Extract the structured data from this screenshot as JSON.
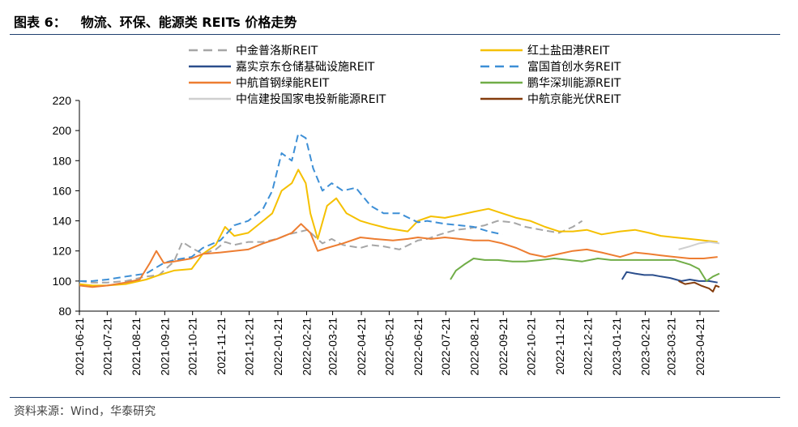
{
  "header": {
    "number": "图表 6：",
    "title": "物流、环保、能源类 REITs 价格走势"
  },
  "source": "资料来源：Wind，华泰研究",
  "chart_data": {
    "type": "line",
    "title": "物流、环保、能源类 REITs 价格走势",
    "xlabel": "",
    "ylabel": "",
    "ylim": [
      80,
      220
    ],
    "yticks": [
      80,
      100,
      120,
      140,
      160,
      180,
      200,
      220
    ],
    "xlim": [
      "2021-06-21",
      "2023-05-12"
    ],
    "xticks": [
      "2021-06-21",
      "2021-07-21",
      "2021-08-21",
      "2021-09-21",
      "2021-10-21",
      "2021-11-21",
      "2021-12-21",
      "2022-01-21",
      "2022-02-21",
      "2022-03-21",
      "2022-04-21",
      "2022-05-21",
      "2022-06-21",
      "2022-07-21",
      "2022-08-21",
      "2022-09-21",
      "2022-10-21",
      "2022-11-21",
      "2022-12-21",
      "2023-01-21",
      "2023-02-21",
      "2023-03-21",
      "2023-04-21"
    ],
    "grid": false,
    "legend_position": "top",
    "series": [
      {
        "name": "中金普洛斯REIT",
        "color": "#a6a6a6",
        "dash": "dashed",
        "points": [
          [
            "2021-06-21",
            100
          ],
          [
            "2021-07-05",
            99
          ],
          [
            "2021-07-21",
            99
          ],
          [
            "2021-08-10",
            100
          ],
          [
            "2021-09-01",
            103
          ],
          [
            "2021-09-15",
            104
          ],
          [
            "2021-10-01",
            113
          ],
          [
            "2021-10-10",
            126
          ],
          [
            "2021-10-20",
            122
          ],
          [
            "2021-11-01",
            118
          ],
          [
            "2021-11-15",
            121
          ],
          [
            "2021-11-25",
            126
          ],
          [
            "2021-12-05",
            124
          ],
          [
            "2021-12-20",
            126
          ],
          [
            "2022-01-05",
            126
          ],
          [
            "2022-01-20",
            128
          ],
          [
            "2022-02-01",
            131
          ],
          [
            "2022-02-15",
            133
          ],
          [
            "2022-02-22",
            134
          ],
          [
            "2022-03-01",
            130
          ],
          [
            "2022-03-10",
            125
          ],
          [
            "2022-03-20",
            128
          ],
          [
            "2022-04-01",
            124
          ],
          [
            "2022-04-20",
            122
          ],
          [
            "2022-05-01",
            124
          ],
          [
            "2022-05-15",
            123
          ],
          [
            "2022-06-01",
            121
          ],
          [
            "2022-06-21",
            127
          ],
          [
            "2022-07-01",
            128
          ],
          [
            "2022-07-15",
            131
          ],
          [
            "2022-08-01",
            134
          ],
          [
            "2022-08-15",
            135
          ],
          [
            "2022-09-01",
            137
          ],
          [
            "2022-09-15",
            140
          ],
          [
            "2022-10-01",
            139
          ],
          [
            "2022-10-15",
            136
          ],
          [
            "2022-11-01",
            134
          ],
          [
            "2022-11-20",
            132
          ],
          [
            "2022-12-05",
            136
          ],
          [
            "2022-12-15",
            140
          ]
        ]
      },
      {
        "name": "红土盐田港REIT",
        "color": "#f5c000",
        "dash": "solid",
        "points": [
          [
            "2021-06-21",
            98
          ],
          [
            "2021-07-05",
            97
          ],
          [
            "2021-07-21",
            97
          ],
          [
            "2021-08-10",
            98
          ],
          [
            "2021-09-01",
            101
          ],
          [
            "2021-09-15",
            104
          ],
          [
            "2021-10-01",
            107
          ],
          [
            "2021-10-20",
            108
          ],
          [
            "2021-11-01",
            118
          ],
          [
            "2021-11-15",
            124
          ],
          [
            "2021-11-25",
            136
          ],
          [
            "2021-12-05",
            130
          ],
          [
            "2021-12-20",
            132
          ],
          [
            "2022-01-05",
            140
          ],
          [
            "2022-01-15",
            145
          ],
          [
            "2022-01-25",
            160
          ],
          [
            "2022-02-05",
            165
          ],
          [
            "2022-02-12",
            174
          ],
          [
            "2022-02-20",
            165
          ],
          [
            "2022-02-25",
            145
          ],
          [
            "2022-03-05",
            128
          ],
          [
            "2022-03-15",
            150
          ],
          [
            "2022-03-25",
            155
          ],
          [
            "2022-04-05",
            145
          ],
          [
            "2022-04-20",
            140
          ],
          [
            "2022-05-01",
            138
          ],
          [
            "2022-05-20",
            135
          ],
          [
            "2022-06-10",
            133
          ],
          [
            "2022-06-21",
            140
          ],
          [
            "2022-07-05",
            143
          ],
          [
            "2022-07-20",
            142
          ],
          [
            "2022-08-05",
            144
          ],
          [
            "2022-08-20",
            146
          ],
          [
            "2022-09-05",
            148
          ],
          [
            "2022-09-20",
            145
          ],
          [
            "2022-10-05",
            142
          ],
          [
            "2022-10-20",
            140
          ],
          [
            "2022-11-05",
            136
          ],
          [
            "2022-11-20",
            133
          ],
          [
            "2022-12-05",
            133
          ],
          [
            "2022-12-20",
            134
          ],
          [
            "2023-01-05",
            131
          ],
          [
            "2023-01-25",
            133
          ],
          [
            "2023-02-10",
            134
          ],
          [
            "2023-02-25",
            132
          ],
          [
            "2023-03-10",
            130
          ],
          [
            "2023-03-25",
            129
          ],
          [
            "2023-04-10",
            128
          ],
          [
            "2023-04-25",
            127
          ],
          [
            "2023-05-10",
            126
          ]
        ]
      },
      {
        "name": "嘉实京东仓储基础设施REIT",
        "color": "#2b4e8c",
        "dash": "solid",
        "points": [
          [
            "2023-01-27",
            101
          ],
          [
            "2023-02-01",
            106
          ],
          [
            "2023-02-10",
            105
          ],
          [
            "2023-02-20",
            104
          ],
          [
            "2023-03-01",
            104
          ],
          [
            "2023-03-10",
            103
          ],
          [
            "2023-03-20",
            102
          ],
          [
            "2023-04-01",
            100
          ],
          [
            "2023-04-10",
            101
          ],
          [
            "2023-04-20",
            100
          ],
          [
            "2023-05-01",
            100
          ],
          [
            "2023-05-10",
            99
          ]
        ]
      },
      {
        "name": "富国首创水务REIT",
        "color": "#3d8fd6",
        "dash": "dashed",
        "points": [
          [
            "2021-06-21",
            100
          ],
          [
            "2021-07-05",
            100
          ],
          [
            "2021-07-21",
            101
          ],
          [
            "2021-08-10",
            103
          ],
          [
            "2021-09-01",
            105
          ],
          [
            "2021-09-20",
            112
          ],
          [
            "2021-10-01",
            114
          ],
          [
            "2021-10-20",
            116
          ],
          [
            "2021-11-01",
            122
          ],
          [
            "2021-11-20",
            127
          ],
          [
            "2021-12-05",
            137
          ],
          [
            "2021-12-20",
            140
          ],
          [
            "2022-01-05",
            148
          ],
          [
            "2022-01-15",
            160
          ],
          [
            "2022-01-25",
            185
          ],
          [
            "2022-02-05",
            180
          ],
          [
            "2022-02-12",
            198
          ],
          [
            "2022-02-20",
            195
          ],
          [
            "2022-02-28",
            175
          ],
          [
            "2022-03-10",
            160
          ],
          [
            "2022-03-20",
            165
          ],
          [
            "2022-04-01",
            160
          ],
          [
            "2022-04-15",
            162
          ],
          [
            "2022-05-01",
            150
          ],
          [
            "2022-05-15",
            145
          ],
          [
            "2022-06-01",
            145
          ],
          [
            "2022-06-21",
            139
          ],
          [
            "2022-07-01",
            140
          ],
          [
            "2022-07-20",
            138
          ],
          [
            "2022-08-05",
            137
          ],
          [
            "2022-08-20",
            136
          ],
          [
            "2022-09-05",
            133
          ],
          [
            "2022-09-20",
            131
          ]
        ]
      },
      {
        "name": "中航首钢绿能REIT",
        "color": "#ed7d31",
        "dash": "solid",
        "points": [
          [
            "2021-06-21",
            97
          ],
          [
            "2021-07-05",
            96
          ],
          [
            "2021-07-21",
            97
          ],
          [
            "2021-08-10",
            99
          ],
          [
            "2021-08-25",
            101
          ],
          [
            "2021-09-05",
            112
          ],
          [
            "2021-09-12",
            120
          ],
          [
            "2021-09-20",
            112
          ],
          [
            "2021-10-01",
            113
          ],
          [
            "2021-10-20",
            115
          ],
          [
            "2021-11-01",
            118
          ],
          [
            "2021-11-20",
            119
          ],
          [
            "2021-12-05",
            120
          ],
          [
            "2021-12-20",
            121
          ],
          [
            "2022-01-05",
            125
          ],
          [
            "2022-01-20",
            128
          ],
          [
            "2022-02-05",
            132
          ],
          [
            "2022-02-15",
            138
          ],
          [
            "2022-02-25",
            132
          ],
          [
            "2022-03-05",
            120
          ],
          [
            "2022-03-15",
            122
          ],
          [
            "2022-04-01",
            125
          ],
          [
            "2022-04-20",
            129
          ],
          [
            "2022-05-05",
            128
          ],
          [
            "2022-05-25",
            127
          ],
          [
            "2022-06-10",
            128
          ],
          [
            "2022-06-21",
            129
          ],
          [
            "2022-07-05",
            128
          ],
          [
            "2022-07-20",
            129
          ],
          [
            "2022-08-05",
            128
          ],
          [
            "2022-08-20",
            127
          ],
          [
            "2022-09-05",
            127
          ],
          [
            "2022-09-20",
            125
          ],
          [
            "2022-10-05",
            122
          ],
          [
            "2022-10-20",
            118
          ],
          [
            "2022-11-05",
            116
          ],
          [
            "2022-11-20",
            118
          ],
          [
            "2022-12-05",
            120
          ],
          [
            "2022-12-20",
            121
          ],
          [
            "2023-01-05",
            119
          ],
          [
            "2023-01-25",
            116
          ],
          [
            "2023-02-10",
            119
          ],
          [
            "2023-02-25",
            118
          ],
          [
            "2023-03-10",
            117
          ],
          [
            "2023-03-25",
            116
          ],
          [
            "2023-04-10",
            115
          ],
          [
            "2023-04-25",
            115
          ],
          [
            "2023-05-10",
            116
          ]
        ]
      },
      {
        "name": "鹏华深圳能源REIT",
        "color": "#70ad47",
        "dash": "solid",
        "points": [
          [
            "2022-07-26",
            101
          ],
          [
            "2022-08-01",
            107
          ],
          [
            "2022-08-10",
            111
          ],
          [
            "2022-08-20",
            115
          ],
          [
            "2022-09-01",
            114
          ],
          [
            "2022-09-15",
            114
          ],
          [
            "2022-10-01",
            113
          ],
          [
            "2022-10-15",
            113
          ],
          [
            "2022-11-01",
            114
          ],
          [
            "2022-11-15",
            115
          ],
          [
            "2022-12-01",
            114
          ],
          [
            "2022-12-15",
            113
          ],
          [
            "2023-01-01",
            115
          ],
          [
            "2023-01-15",
            114
          ],
          [
            "2023-02-01",
            114
          ],
          [
            "2023-02-20",
            114
          ],
          [
            "2023-03-10",
            114
          ],
          [
            "2023-03-25",
            114
          ],
          [
            "2023-04-10",
            111
          ],
          [
            "2023-04-20",
            108
          ],
          [
            "2023-04-28",
            100
          ],
          [
            "2023-05-05",
            103
          ],
          [
            "2023-05-12",
            105
          ]
        ]
      },
      {
        "name": "中信建投国家电投新能源REIT",
        "color": "#cfcfcf",
        "dash": "solid",
        "points": [
          [
            "2023-03-29",
            121
          ],
          [
            "2023-04-10",
            123
          ],
          [
            "2023-04-20",
            125
          ],
          [
            "2023-05-01",
            126
          ],
          [
            "2023-05-12",
            125
          ]
        ]
      },
      {
        "name": "中航京能光伏REIT",
        "color": "#843c0c",
        "dash": "solid",
        "points": [
          [
            "2023-03-29",
            100
          ],
          [
            "2023-04-05",
            98
          ],
          [
            "2023-04-15",
            99
          ],
          [
            "2023-04-22",
            97
          ],
          [
            "2023-05-01",
            95
          ],
          [
            "2023-05-05",
            93
          ],
          [
            "2023-05-08",
            97
          ],
          [
            "2023-05-12",
            96
          ]
        ]
      }
    ]
  }
}
